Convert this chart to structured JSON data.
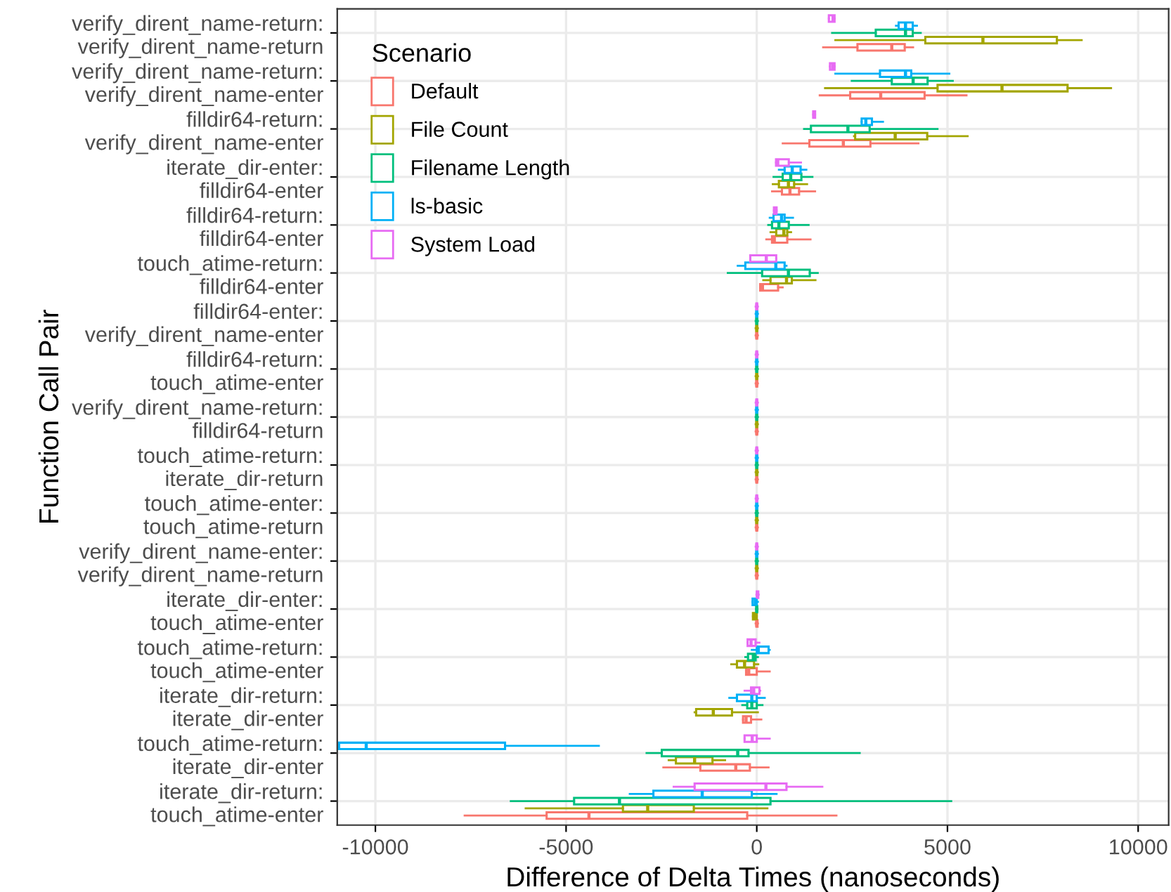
{
  "chart_data": {
    "type": "box",
    "orientation": "horizontal",
    "xlabel": "Difference of Delta Times (nanoseconds)",
    "ylabel": "Function Call Pair",
    "legend_title": "Scenario",
    "legend": "top left",
    "grid": true,
    "xlim": [
      -11000,
      10800
    ],
    "xticks": [
      -10000,
      -5000,
      0,
      5000,
      10000
    ],
    "categories": [
      "verify_dirent_name-return:\nverify_dirent_name-return",
      "verify_dirent_name-return:\nverify_dirent_name-enter",
      "filldir64-return:\nverify_dirent_name-enter",
      "iterate_dir-enter:\nfilldir64-enter",
      "filldir64-return:\nfilldir64-enter",
      "touch_atime-return:\nfilldir64-enter",
      "filldir64-enter:\nverify_dirent_name-enter",
      "filldir64-return:\ntouch_atime-enter",
      "verify_dirent_name-return:\nfilldir64-return",
      "touch_atime-return:\niterate_dir-return",
      "touch_atime-enter:\ntouch_atime-return",
      "verify_dirent_name-enter:\nverify_dirent_name-return",
      "iterate_dir-enter:\ntouch_atime-enter",
      "touch_atime-return:\ntouch_atime-enter",
      "iterate_dir-return:\niterate_dir-enter",
      "touch_atime-return:\niterate_dir-enter",
      "iterate_dir-return:\ntouch_atime-enter"
    ],
    "series": [
      {
        "name": "Default",
        "color": "#f8766d",
        "boxes": [
          {
            "low": 1740,
            "q1": 2640,
            "median": 3540,
            "q3": 3880,
            "high": 4100
          },
          {
            "low": 1650,
            "q1": 2450,
            "median": 3250,
            "q3": 4400,
            "high": 5500
          },
          {
            "low": 680,
            "q1": 1380,
            "median": 2270,
            "q3": 2980,
            "high": 4240
          },
          {
            "low": 400,
            "q1": 660,
            "median": 870,
            "q3": 1110,
            "high": 1530
          },
          {
            "low": 250,
            "q1": 400,
            "median": 460,
            "q3": 800,
            "high": 1410
          },
          {
            "low": 90,
            "q1": 90,
            "median": 150,
            "q3": 560,
            "high": 680
          },
          {
            "low": -30,
            "q1": -10,
            "median": 0,
            "q3": 10,
            "high": 30
          },
          {
            "low": -30,
            "q1": -10,
            "median": 0,
            "q3": 10,
            "high": 30
          },
          {
            "low": -30,
            "q1": -10,
            "median": 0,
            "q3": 10,
            "high": 30
          },
          {
            "low": -30,
            "q1": -10,
            "median": 0,
            "q3": 10,
            "high": 30
          },
          {
            "low": -30,
            "q1": -10,
            "median": 0,
            "q3": 10,
            "high": 30
          },
          {
            "low": -30,
            "q1": -10,
            "median": 0,
            "q3": 10,
            "high": 30
          },
          {
            "low": -30,
            "q1": -10,
            "median": 0,
            "q3": 20,
            "high": 30
          },
          {
            "low": -280,
            "q1": -280,
            "median": -210,
            "q3": 0,
            "high": 340
          },
          {
            "low": -360,
            "q1": -360,
            "median": -280,
            "q3": -150,
            "high": 120
          },
          {
            "low": -2450,
            "q1": -1480,
            "median": -550,
            "q3": -180,
            "high": 310
          },
          {
            "low": -7660,
            "q1": -5510,
            "median": -4400,
            "q3": -250,
            "high": 2090
          }
        ]
      },
      {
        "name": "File Count",
        "color": "#a3a500",
        "boxes": [
          {
            "low": 2060,
            "q1": 4420,
            "median": 5930,
            "q3": 7870,
            "high": 8520
          },
          {
            "low": 1790,
            "q1": 4740,
            "median": 6430,
            "q3": 8150,
            "high": 9290
          },
          {
            "low": 2550,
            "q1": 2580,
            "median": 3630,
            "q3": 4470,
            "high": 5530
          },
          {
            "low": 420,
            "q1": 580,
            "median": 830,
            "q3": 980,
            "high": 1320
          },
          {
            "low": 360,
            "q1": 510,
            "median": 710,
            "q3": 800,
            "high": 900
          },
          {
            "low": 170,
            "q1": 360,
            "median": 780,
            "q3": 920,
            "high": 1540
          },
          {
            "low": -30,
            "q1": -10,
            "median": 0,
            "q3": 10,
            "high": 30
          },
          {
            "low": -30,
            "q1": -10,
            "median": 0,
            "q3": 10,
            "high": 30
          },
          {
            "low": -30,
            "q1": -10,
            "median": 0,
            "q3": 10,
            "high": 30
          },
          {
            "low": -30,
            "q1": -10,
            "median": 0,
            "q3": 10,
            "high": 30
          },
          {
            "low": -30,
            "q1": -10,
            "median": 0,
            "q3": 10,
            "high": 30
          },
          {
            "low": -30,
            "q1": -10,
            "median": 0,
            "q3": 10,
            "high": 30
          },
          {
            "low": -100,
            "q1": -100,
            "median": -50,
            "q3": 0,
            "high": 0
          },
          {
            "low": -670,
            "q1": -520,
            "median": -320,
            "q3": -70,
            "high": 40
          },
          {
            "low": -1630,
            "q1": -1590,
            "median": -1140,
            "q3": -650,
            "high": 30
          },
          {
            "low": -2310,
            "q1": -2120,
            "median": -1630,
            "q3": -1160,
            "high": -830
          },
          {
            "low": -6060,
            "q1": -3510,
            "median": -2860,
            "q3": -1650,
            "high": 280
          }
        ]
      },
      {
        "name": "Filename Length",
        "color": "#00bf7d",
        "boxes": [
          {
            "low": 1975,
            "q1": 3120,
            "median": 3900,
            "q3": 4090,
            "high": 4300
          },
          {
            "low": 2490,
            "q1": 3540,
            "median": 4100,
            "q3": 4480,
            "high": 5140
          },
          {
            "low": 1240,
            "q1": 1420,
            "median": 2390,
            "q3": 2960,
            "high": 4740
          },
          {
            "low": 440,
            "q1": 680,
            "median": 890,
            "q3": 1170,
            "high": 1460
          },
          {
            "low": 300,
            "q1": 400,
            "median": 580,
            "q3": 840,
            "high": 1360
          },
          {
            "low": -760,
            "q1": 140,
            "median": 830,
            "q3": 1390,
            "high": 1600
          },
          {
            "low": -30,
            "q1": -10,
            "median": 0,
            "q3": 10,
            "high": 30
          },
          {
            "low": -30,
            "q1": -10,
            "median": 0,
            "q3": 10,
            "high": 30
          },
          {
            "low": -30,
            "q1": -10,
            "median": 0,
            "q3": 10,
            "high": 30
          },
          {
            "low": -30,
            "q1": -10,
            "median": 0,
            "q3": 10,
            "high": 30
          },
          {
            "low": -30,
            "q1": -10,
            "median": 0,
            "q3": 10,
            "high": 30
          },
          {
            "low": -30,
            "q1": -10,
            "median": 0,
            "q3": 10,
            "high": 30
          },
          {
            "low": -20,
            "q1": -10,
            "median": 0,
            "q3": 10,
            "high": 20
          },
          {
            "low": -300,
            "q1": -230,
            "median": -90,
            "q3": -30,
            "high": 30
          },
          {
            "low": -380,
            "q1": -250,
            "median": -130,
            "q3": 0,
            "high": 150
          },
          {
            "low": -2890,
            "q1": -2490,
            "median": -500,
            "q3": -215,
            "high": 2700
          },
          {
            "low": -6450,
            "q1": -4790,
            "median": -3600,
            "q3": 360,
            "high": 5100
          }
        ]
      },
      {
        "name": "ls-basic",
        "color": "#00b0f6",
        "boxes": [
          {
            "low": 3650,
            "q1": 3720,
            "median": 3900,
            "q3": 4090,
            "high": 4200
          },
          {
            "low": 2060,
            "q1": 3230,
            "median": 3900,
            "q3": 4050,
            "high": 5050
          },
          {
            "low": 2750,
            "q1": 2750,
            "median": 2860,
            "q3": 3020,
            "high": 3310
          },
          {
            "low": 580,
            "q1": 730,
            "median": 930,
            "q3": 1150,
            "high": 1300
          },
          {
            "low": 340,
            "q1": 440,
            "median": 650,
            "q3": 730,
            "high": 950
          },
          {
            "low": -500,
            "q1": -300,
            "median": 500,
            "q3": 730,
            "high": 780
          },
          {
            "low": -30,
            "q1": -10,
            "median": 0,
            "q3": 10,
            "high": 30
          },
          {
            "low": -30,
            "q1": -10,
            "median": 0,
            "q3": 10,
            "high": 30
          },
          {
            "low": -30,
            "q1": -10,
            "median": 0,
            "q3": 10,
            "high": 30
          },
          {
            "low": -30,
            "q1": -10,
            "median": 0,
            "q3": 10,
            "high": 30
          },
          {
            "low": -30,
            "q1": -10,
            "median": 0,
            "q3": 10,
            "high": 30
          },
          {
            "low": -30,
            "q1": -10,
            "median": 0,
            "q3": 10,
            "high": 30
          },
          {
            "low": -110,
            "q1": -110,
            "median": -40,
            "q3": 0,
            "high": 30
          },
          {
            "low": -130,
            "q1": 0,
            "median": 40,
            "q3": 310,
            "high": 340
          },
          {
            "low": -720,
            "q1": -520,
            "median": -130,
            "q3": 0,
            "high": 210
          },
          {
            "low": -10950,
            "q1": -10950,
            "median": -10240,
            "q3": -6600,
            "high": -4140
          },
          {
            "low": -3330,
            "q1": -2710,
            "median": -1430,
            "q3": -130,
            "high": 520
          }
        ]
      },
      {
        "name": "System Load",
        "color": "#e76bf3",
        "boxes": [
          {
            "low": 1890,
            "q1": 1890,
            "median": 2000,
            "q3": 2040,
            "high": 2040
          },
          {
            "low": 1920,
            "q1": 1920,
            "median": 1990,
            "q3": 2040,
            "high": 2040
          },
          {
            "low": 1480,
            "q1": 1480,
            "median": 1500,
            "q3": 1530,
            "high": 1530
          },
          {
            "low": 505,
            "q1": 505,
            "median": 550,
            "q3": 840,
            "high": 1160
          },
          {
            "low": 450,
            "q1": 450,
            "median": 480,
            "q3": 520,
            "high": 520
          },
          {
            "low": -170,
            "q1": -170,
            "median": 250,
            "q3": 510,
            "high": 510
          },
          {
            "low": -30,
            "q1": -10,
            "median": 0,
            "q3": 10,
            "high": 30
          },
          {
            "low": -30,
            "q1": -10,
            "median": 0,
            "q3": 10,
            "high": 30
          },
          {
            "low": -30,
            "q1": -10,
            "median": 0,
            "q3": 10,
            "high": 30
          },
          {
            "low": -30,
            "q1": -10,
            "median": 0,
            "q3": 10,
            "high": 30
          },
          {
            "low": -30,
            "q1": -10,
            "median": 0,
            "q3": 10,
            "high": 30
          },
          {
            "low": -30,
            "q1": -10,
            "median": 0,
            "q3": 10,
            "high": 30
          },
          {
            "low": -10,
            "q1": 0,
            "median": 20,
            "q3": 40,
            "high": 50
          },
          {
            "low": -240,
            "q1": -240,
            "median": -150,
            "q3": -30,
            "high": 70
          },
          {
            "low": -320,
            "q1": -150,
            "median": -80,
            "q3": 70,
            "high": 90
          },
          {
            "low": -320,
            "q1": -320,
            "median": -120,
            "q3": 0,
            "high": 340
          },
          {
            "low": -2180,
            "q1": -1630,
            "median": 240,
            "q3": 780,
            "high": 1720
          }
        ]
      }
    ]
  }
}
